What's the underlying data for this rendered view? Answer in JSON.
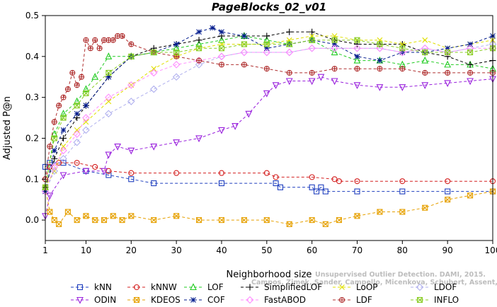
{
  "chart_data": {
    "type": "line",
    "title": "PageBlocks_02_v01",
    "xlabel": "Neighborhood size",
    "ylabel": "Adjusted P@n",
    "xlim": [
      1,
      100
    ],
    "ylim": [
      -0.05,
      0.5
    ],
    "xticks": [
      1,
      10,
      20,
      30,
      40,
      50,
      60,
      70,
      80,
      90,
      100
    ],
    "yticks": [
      0.0,
      0.1,
      0.2,
      0.3,
      0.4,
      0.5
    ],
    "ytick_labels": [
      "0.0",
      "0.1",
      "0.2",
      "0.3",
      "0.4",
      "0.5"
    ],
    "grid": false,
    "legend_position": "bottom",
    "credit": [
      "Unsupervised Outlier Detection. DAMI, 2015.",
      "Campos, Zimek, Sander, Campello, Micenkova, Schubert, Assent, Houle"
    ],
    "series": [
      {
        "name": "kNN",
        "color": "#1f3fbf",
        "marker": "square",
        "dash": "4,3",
        "x": [
          1,
          2,
          5,
          10,
          15,
          20,
          25,
          40,
          52,
          53,
          60,
          61,
          62,
          63,
          70,
          80,
          90,
          100
        ],
        "y": [
          0.13,
          0.14,
          0.14,
          0.12,
          0.11,
          0.1,
          0.09,
          0.09,
          0.09,
          0.08,
          0.08,
          0.07,
          0.08,
          0.07,
          0.07,
          0.07,
          0.07,
          0.07
        ]
      },
      {
        "name": "kNNW",
        "color": "#d42020",
        "marker": "circle",
        "dash": "4,3",
        "x": [
          1,
          2,
          4,
          8,
          12,
          15,
          20,
          30,
          40,
          50,
          52,
          60,
          65,
          66,
          70,
          80,
          90,
          100
        ],
        "y": [
          0.1,
          0.13,
          0.14,
          0.14,
          0.13,
          0.12,
          0.115,
          0.115,
          0.115,
          0.115,
          0.105,
          0.105,
          0.1,
          0.095,
          0.095,
          0.095,
          0.095,
          0.095
        ]
      },
      {
        "name": "LOF",
        "color": "#22cc22",
        "marker": "triangle-up",
        "dash": "4,3",
        "x": [
          1,
          3,
          5,
          8,
          10,
          12,
          15,
          20,
          25,
          30,
          35,
          40,
          45,
          50,
          55,
          60,
          65,
          70,
          75,
          80,
          85,
          90,
          95,
          100
        ],
        "y": [
          0.08,
          0.21,
          0.26,
          0.29,
          0.32,
          0.35,
          0.4,
          0.4,
          0.41,
          0.42,
          0.43,
          0.44,
          0.45,
          0.44,
          0.43,
          0.44,
          0.41,
          0.39,
          0.39,
          0.38,
          0.39,
          0.38,
          0.38,
          0.37
        ]
      },
      {
        "name": "SimplifiedLOF",
        "color": "#000000",
        "marker": "plus",
        "dash": "4,3",
        "x": [
          1,
          3,
          5,
          8,
          10,
          15,
          20,
          25,
          30,
          35,
          40,
          45,
          50,
          55,
          60,
          65,
          70,
          75,
          80,
          85,
          90,
          95,
          100
        ],
        "y": [
          0.08,
          0.15,
          0.2,
          0.25,
          0.28,
          0.35,
          0.4,
          0.42,
          0.43,
          0.44,
          0.45,
          0.45,
          0.45,
          0.46,
          0.46,
          0.44,
          0.43,
          0.43,
          0.43,
          0.41,
          0.4,
          0.38,
          0.39
        ]
      },
      {
        "name": "LoOP",
        "color": "#e0e000",
        "marker": "x",
        "dash": "4,3",
        "x": [
          1,
          3,
          5,
          8,
          10,
          15,
          20,
          25,
          30,
          35,
          40,
          45,
          50,
          55,
          60,
          65,
          70,
          75,
          80,
          85,
          90,
          95,
          100
        ],
        "y": [
          0.08,
          0.12,
          0.18,
          0.22,
          0.24,
          0.29,
          0.33,
          0.37,
          0.4,
          0.42,
          0.43,
          0.43,
          0.43,
          0.44,
          0.45,
          0.45,
          0.44,
          0.44,
          0.43,
          0.44,
          0.42,
          0.43,
          0.44
        ]
      },
      {
        "name": "LDOF",
        "color": "#b0b0ee",
        "marker": "diamond",
        "dash": "4,3",
        "x": [
          1,
          3,
          5,
          8,
          10,
          15,
          20,
          25,
          30,
          35,
          40,
          45,
          50,
          55,
          60,
          65,
          70,
          75,
          80,
          85,
          90,
          95,
          100
        ],
        "y": [
          0.07,
          0.12,
          0.15,
          0.19,
          0.22,
          0.26,
          0.29,
          0.32,
          0.35,
          0.38,
          0.4,
          0.41,
          0.41,
          0.41,
          0.42,
          0.42,
          0.42,
          0.42,
          0.41,
          0.42,
          0.41,
          0.42,
          0.43
        ]
      },
      {
        "name": "ODIN",
        "color": "#9a22dd",
        "marker": "triangle-down",
        "dash": "4,3",
        "x": [
          1,
          2,
          5,
          10,
          14,
          15,
          17,
          20,
          25,
          30,
          35,
          40,
          43,
          46,
          50,
          52,
          55,
          60,
          62,
          65,
          70,
          75,
          80,
          85,
          90,
          95,
          100
        ],
        "y": [
          0.01,
          0.06,
          0.11,
          0.12,
          0.12,
          0.16,
          0.18,
          0.17,
          0.18,
          0.19,
          0.2,
          0.22,
          0.23,
          0.26,
          0.31,
          0.33,
          0.34,
          0.34,
          0.35,
          0.34,
          0.33,
          0.325,
          0.325,
          0.33,
          0.335,
          0.34,
          0.345
        ]
      },
      {
        "name": "KDEOS",
        "color": "#e6a000",
        "marker": "square-x",
        "dash": "4,3",
        "x": [
          1,
          2,
          3,
          4,
          6,
          8,
          10,
          12,
          14,
          16,
          18,
          20,
          25,
          30,
          35,
          40,
          45,
          50,
          55,
          60,
          63,
          66,
          70,
          75,
          80,
          85,
          90,
          95,
          100
        ],
        "y": [
          0.08,
          0.02,
          0.0,
          -0.01,
          0.02,
          0.0,
          0.01,
          0.0,
          0.0,
          0.01,
          0.0,
          0.01,
          0.0,
          0.01,
          0.0,
          0.0,
          0.0,
          0.0,
          -0.01,
          0.0,
          -0.01,
          0.0,
          0.01,
          0.02,
          0.02,
          0.03,
          0.05,
          0.06,
          0.07
        ]
      },
      {
        "name": "COF",
        "color": "#001a8c",
        "marker": "asterisk",
        "dash": "4,3",
        "x": [
          1,
          3,
          5,
          8,
          10,
          15,
          20,
          25,
          30,
          35,
          38,
          40,
          45,
          50,
          55,
          60,
          65,
          70,
          75,
          80,
          85,
          90,
          95,
          100
        ],
        "y": [
          0.07,
          0.17,
          0.22,
          0.26,
          0.28,
          0.35,
          0.4,
          0.41,
          0.43,
          0.46,
          0.47,
          0.46,
          0.45,
          0.42,
          0.43,
          0.44,
          0.43,
          0.4,
          0.39,
          0.41,
          0.41,
          0.42,
          0.43,
          0.45
        ]
      },
      {
        "name": "FastABOD",
        "color": "#ff8cff",
        "marker": "diamond",
        "dash": "4,3",
        "x": [
          1,
          3,
          5,
          8,
          10,
          15,
          20,
          25,
          30,
          35,
          40,
          45,
          50,
          55,
          60,
          65,
          70,
          75,
          80,
          85,
          90,
          95,
          100
        ],
        "y": [
          0.07,
          0.13,
          0.17,
          0.21,
          0.25,
          0.3,
          0.33,
          0.36,
          0.38,
          0.39,
          0.4,
          0.41,
          0.41,
          0.41,
          0.42,
          0.42,
          0.42,
          0.42,
          0.41,
          0.42,
          0.41,
          0.42,
          0.42
        ]
      },
      {
        "name": "LDF",
        "color": "#b03030",
        "marker": "circle-plus",
        "dash": "4,3",
        "x": [
          1,
          2,
          3,
          4,
          5,
          6,
          7,
          8,
          9,
          10,
          11,
          12,
          13,
          14,
          15,
          16,
          17,
          18,
          20,
          25,
          30,
          35,
          40,
          45,
          50,
          55,
          60,
          65,
          70,
          75,
          80,
          85,
          90,
          95,
          100
        ],
        "y": [
          0.1,
          0.18,
          0.24,
          0.28,
          0.3,
          0.32,
          0.36,
          0.33,
          0.35,
          0.44,
          0.42,
          0.44,
          0.42,
          0.44,
          0.44,
          0.44,
          0.45,
          0.45,
          0.43,
          0.41,
          0.4,
          0.39,
          0.38,
          0.38,
          0.37,
          0.36,
          0.36,
          0.37,
          0.37,
          0.37,
          0.37,
          0.36,
          0.36,
          0.36,
          0.36
        ]
      },
      {
        "name": "INFLO",
        "color": "#88cc22",
        "marker": "square-x",
        "dash": "4,3",
        "x": [
          1,
          3,
          5,
          8,
          10,
          15,
          20,
          25,
          30,
          35,
          40,
          45,
          50,
          55,
          60,
          65,
          70,
          75,
          80,
          85,
          90,
          95,
          100
        ],
        "y": [
          0.08,
          0.2,
          0.25,
          0.28,
          0.31,
          0.36,
          0.4,
          0.41,
          0.41,
          0.42,
          0.42,
          0.43,
          0.43,
          0.43,
          0.44,
          0.44,
          0.44,
          0.43,
          0.42,
          0.41,
          0.41,
          0.41,
          0.42
        ]
      }
    ]
  }
}
